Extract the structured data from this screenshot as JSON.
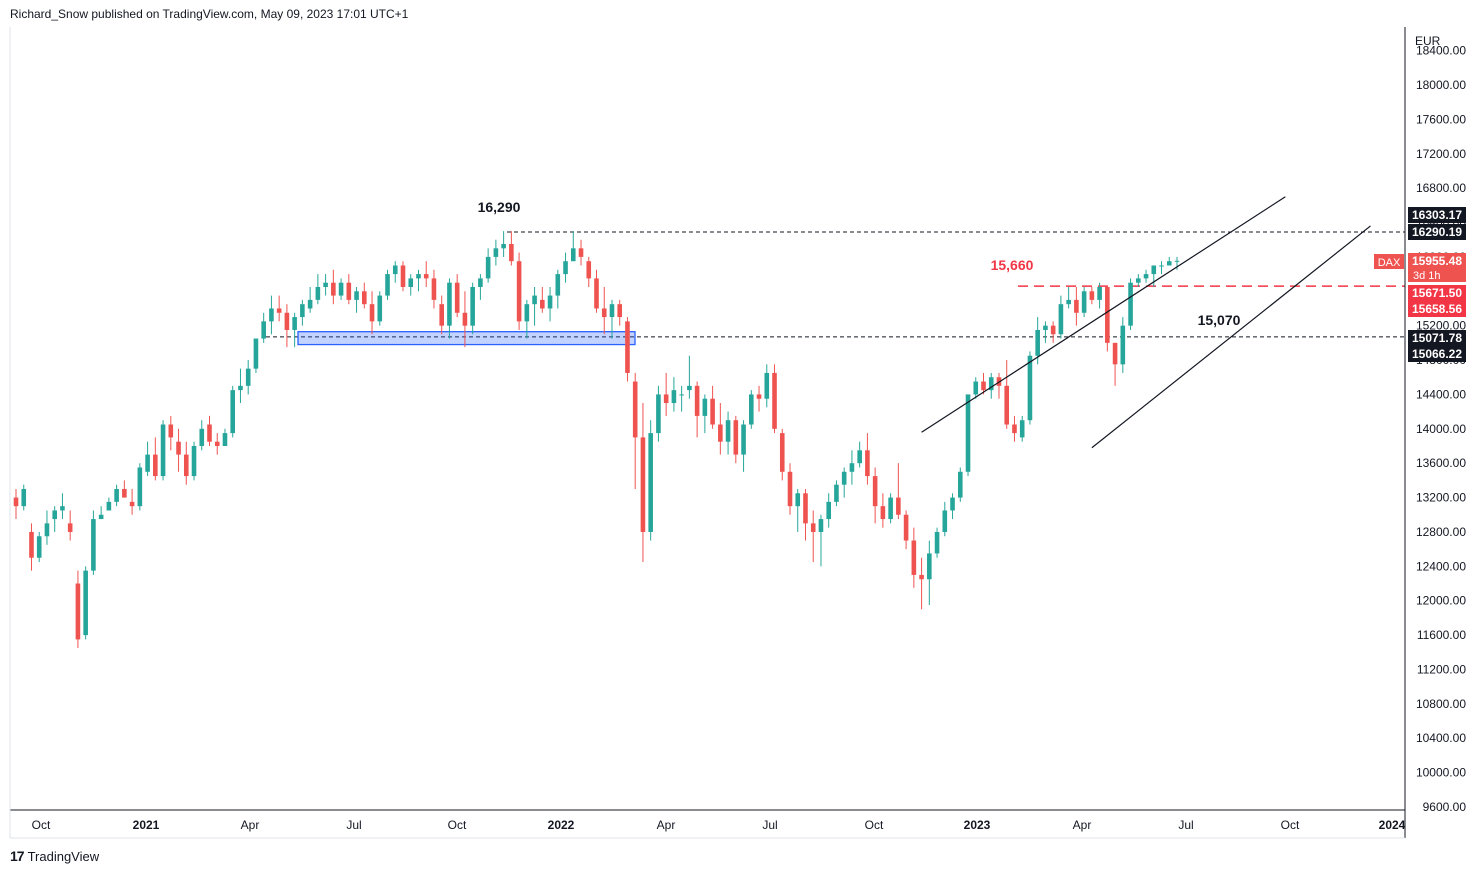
{
  "header": {
    "published_text": "Richard_Snow published on TradingView.com, May 09, 2023 17:01 UTC+1"
  },
  "footer": {
    "brand_logo": "17",
    "brand_name": "TradingView"
  },
  "chart_data": {
    "type": "candlestick",
    "symbol": "DAX",
    "currency": "EUR",
    "interval": "weekly",
    "countdown": "3d 1h",
    "ylim": [
      9500,
      18900
    ],
    "y_ticks": [
      9600,
      10000,
      10400,
      10800,
      11200,
      11600,
      12000,
      12400,
      12800,
      13200,
      13600,
      14000,
      14400,
      14800,
      15200,
      15600,
      16000,
      16400,
      16800,
      17200,
      17600,
      18000,
      18400
    ],
    "x_ticks": [
      "Oct",
      "2021",
      "Apr",
      "Jul",
      "Oct",
      "2022",
      "Apr",
      "Jul",
      "Oct",
      "2023",
      "Apr",
      "Jul",
      "Oct",
      "2024"
    ],
    "x_tick_bold": [
      "2021",
      "2022",
      "2023",
      "2024"
    ],
    "colors": {
      "up": "#26a69a",
      "down": "#ef5350",
      "grid": "none",
      "annotation_red": "#f23645"
    },
    "candles": [
      [
        13200,
        13300,
        12950,
        13100
      ],
      [
        13100,
        13350,
        13050,
        13300
      ],
      [
        12800,
        12900,
        12350,
        12500
      ],
      [
        12500,
        12800,
        12450,
        12750
      ],
      [
        12750,
        13050,
        12650,
        12900
      ],
      [
        12950,
        13100,
        12800,
        13050
      ],
      [
        13050,
        13250,
        12950,
        13100
      ],
      [
        12900,
        13050,
        12700,
        12800
      ],
      [
        12200,
        12350,
        11450,
        11550
      ],
      [
        11600,
        12400,
        11550,
        12350
      ],
      [
        12350,
        13050,
        12300,
        12950
      ],
      [
        12950,
        13100,
        12950,
        13000
      ],
      [
        13050,
        13200,
        13050,
        13150
      ],
      [
        13150,
        13350,
        13100,
        13300
      ],
      [
        13300,
        13400,
        13200,
        13200
      ],
      [
        13150,
        13300,
        13000,
        13100
      ],
      [
        13100,
        13600,
        13050,
        13550
      ],
      [
        13500,
        13850,
        13450,
        13700
      ],
      [
        13700,
        13900,
        13400,
        13450
      ],
      [
        13450,
        14100,
        13400,
        14050
      ],
      [
        14050,
        14150,
        13750,
        13900
      ],
      [
        13850,
        14000,
        13500,
        13700
      ],
      [
        13700,
        13850,
        13350,
        13450
      ],
      [
        13450,
        13850,
        13400,
        13800
      ],
      [
        13800,
        14100,
        13750,
        14000
      ],
      [
        14050,
        14150,
        13800,
        13850
      ],
      [
        13850,
        13950,
        13700,
        13800
      ],
      [
        13800,
        14000,
        13800,
        13950
      ],
      [
        13950,
        14500,
        13900,
        14450
      ],
      [
        14450,
        14700,
        14300,
        14500
      ],
      [
        14500,
        14800,
        14400,
        14700
      ],
      [
        14700,
        15050,
        14650,
        15050
      ],
      [
        15050,
        15350,
        15000,
        15250
      ],
      [
        15250,
        15550,
        15100,
        15400
      ],
      [
        15400,
        15550,
        15250,
        15350
      ],
      [
        15350,
        15450,
        14950,
        15150
      ],
      [
        15150,
        15350,
        14950,
        15300
      ],
      [
        15300,
        15500,
        15200,
        15450
      ],
      [
        15400,
        15650,
        15350,
        15500
      ],
      [
        15500,
        15800,
        15450,
        15650
      ],
      [
        15650,
        15800,
        15550,
        15700
      ],
      [
        15700,
        15850,
        15450,
        15550
      ],
      [
        15550,
        15750,
        15500,
        15700
      ],
      [
        15700,
        15800,
        15450,
        15500
      ],
      [
        15500,
        15650,
        15350,
        15600
      ],
      [
        15600,
        15700,
        15400,
        15450
      ],
      [
        15450,
        15600,
        15100,
        15250
      ],
      [
        15250,
        15600,
        15200,
        15550
      ],
      [
        15550,
        15850,
        15500,
        15800
      ],
      [
        15800,
        15950,
        15700,
        15900
      ],
      [
        15900,
        15950,
        15600,
        15650
      ],
      [
        15650,
        15800,
        15550,
        15750
      ],
      [
        15750,
        15850,
        15600,
        15800
      ],
      [
        15800,
        15950,
        15650,
        15750
      ],
      [
        15750,
        15850,
        15400,
        15500
      ],
      [
        15450,
        15550,
        15100,
        15200
      ],
      [
        15200,
        15750,
        15050,
        15700
      ],
      [
        15700,
        15800,
        15300,
        15350
      ],
      [
        15350,
        15600,
        14950,
        15200
      ],
      [
        15200,
        15700,
        15100,
        15650
      ],
      [
        15650,
        15800,
        15500,
        15750
      ],
      [
        15750,
        16100,
        15700,
        16000
      ],
      [
        16000,
        16200,
        15900,
        16100
      ],
      [
        16100,
        16300,
        16000,
        16150
      ],
      [
        16150,
        16300,
        15900,
        15950
      ],
      [
        15950,
        16050,
        15150,
        15250
      ],
      [
        15250,
        15500,
        15050,
        15450
      ],
      [
        15450,
        15650,
        15200,
        15550
      ],
      [
        15500,
        15650,
        15350,
        15400
      ],
      [
        15400,
        15650,
        15250,
        15550
      ],
      [
        15550,
        15850,
        15400,
        15800
      ],
      [
        15800,
        16050,
        15700,
        15950
      ],
      [
        15950,
        16300,
        15950,
        16100
      ],
      [
        16100,
        16200,
        15900,
        16000
      ],
      [
        15950,
        16000,
        15650,
        15750
      ],
      [
        15750,
        15850,
        15350,
        15400
      ],
      [
        15400,
        15650,
        15100,
        15300
      ],
      [
        15300,
        15500,
        15050,
        15450
      ],
      [
        15450,
        15500,
        15200,
        15300
      ],
      [
        15250,
        15300,
        14550,
        14650
      ],
      [
        14550,
        14650,
        13300,
        13900
      ],
      [
        13900,
        14300,
        12450,
        12800
      ],
      [
        12800,
        14100,
        12700,
        13950
      ],
      [
        13950,
        14500,
        13850,
        14400
      ],
      [
        14400,
        14650,
        14150,
        14300
      ],
      [
        14300,
        14600,
        14200,
        14450
      ],
      [
        14400,
        14500,
        14200,
        14400
      ],
      [
        14450,
        14850,
        14350,
        14500
      ],
      [
        14500,
        14550,
        13900,
        14150
      ],
      [
        14150,
        14400,
        13950,
        14350
      ],
      [
        14350,
        14500,
        14000,
        14050
      ],
      [
        14050,
        14300,
        13700,
        13850
      ],
      [
        13850,
        14200,
        13700,
        14100
      ],
      [
        14100,
        14150,
        13600,
        13700
      ],
      [
        13700,
        14100,
        13500,
        14050
      ],
      [
        14050,
        14450,
        14000,
        14400
      ],
      [
        14400,
        14500,
        14200,
        14350
      ],
      [
        14350,
        14750,
        14250,
        14650
      ],
      [
        14650,
        14750,
        13950,
        14000
      ],
      [
        13950,
        14000,
        13400,
        13500
      ],
      [
        13500,
        13600,
        13000,
        13100
      ],
      [
        13100,
        13300,
        12800,
        13250
      ],
      [
        13250,
        13300,
        12700,
        12900
      ],
      [
        12900,
        13050,
        12450,
        12800
      ],
      [
        12800,
        13000,
        12400,
        12950
      ],
      [
        12950,
        13250,
        12850,
        13150
      ],
      [
        13150,
        13400,
        13100,
        13350
      ],
      [
        13350,
        13550,
        13200,
        13500
      ],
      [
        13500,
        13750,
        13350,
        13600
      ],
      [
        13600,
        13850,
        13550,
        13750
      ],
      [
        13750,
        13950,
        13350,
        13450
      ],
      [
        13450,
        13550,
        12900,
        13100
      ],
      [
        13100,
        13250,
        12850,
        12950
      ],
      [
        12950,
        13250,
        12900,
        13200
      ],
      [
        13200,
        13600,
        12950,
        13000
      ],
      [
        13000,
        13050,
        12600,
        12700
      ],
      [
        12700,
        12850,
        12150,
        12300
      ],
      [
        12300,
        12500,
        11900,
        12250
      ],
      [
        12250,
        12700,
        11950,
        12550
      ],
      [
        12550,
        12850,
        12500,
        12800
      ],
      [
        12800,
        13150,
        12750,
        13050
      ],
      [
        13050,
        13250,
        12950,
        13200
      ],
      [
        13200,
        13550,
        13150,
        13500
      ],
      [
        13500,
        14400,
        13450,
        14400
      ],
      [
        14400,
        14600,
        14350,
        14550
      ],
      [
        14550,
        14650,
        14400,
        14450
      ],
      [
        14450,
        14650,
        14350,
        14600
      ],
      [
        14600,
        14650,
        14350,
        14500
      ],
      [
        14500,
        14800,
        14000,
        14050
      ],
      [
        14050,
        14150,
        13850,
        13950
      ],
      [
        13900,
        14150,
        13850,
        14100
      ],
      [
        14100,
        14900,
        14050,
        14850
      ],
      [
        14850,
        15300,
        14750,
        15150
      ],
      [
        15150,
        15250,
        15000,
        15200
      ],
      [
        15200,
        15250,
        15000,
        15100
      ],
      [
        15100,
        15550,
        15050,
        15450
      ],
      [
        15450,
        15650,
        15400,
        15500
      ],
      [
        15500,
        15650,
        15200,
        15350
      ],
      [
        15350,
        15650,
        15300,
        15600
      ],
      [
        15600,
        15650,
        15450,
        15500
      ],
      [
        15500,
        15700,
        15400,
        15650
      ],
      [
        15650,
        15650,
        14900,
        15000
      ],
      [
        15000,
        15000,
        14500,
        14750
      ],
      [
        14750,
        15300,
        14650,
        15200
      ],
      [
        15200,
        15750,
        15150,
        15700
      ],
      [
        15700,
        15800,
        15650,
        15750
      ],
      [
        15750,
        15850,
        15700,
        15800
      ],
      [
        15800,
        15900,
        15650,
        15900
      ],
      [
        15900,
        15950,
        15800,
        15900
      ],
      [
        15900,
        16000,
        15900,
        15950
      ],
      [
        15950,
        16000,
        15850,
        15955
      ]
    ],
    "horizontal_levels": [
      {
        "price": 16290,
        "style": "dashed",
        "color": "#131722"
      },
      {
        "price": 15660,
        "style": "dashed",
        "color": "#f23645"
      },
      {
        "price": 15070,
        "style": "dashed",
        "color": "#131722"
      }
    ],
    "support_zone": {
      "price_low": 14980,
      "price_high": 15130
    },
    "channel": {
      "upper": [
        [
          117,
          13960
        ],
        [
          164,
          16700
        ]
      ],
      "lower": [
        [
          139,
          13780
        ],
        [
          175,
          16360
        ]
      ]
    },
    "annotations": [
      {
        "text": "16,290",
        "color": "#131722"
      },
      {
        "text": "15,660",
        "color": "#f23645"
      },
      {
        "text": "15,070",
        "color": "#131722"
      }
    ],
    "price_tags": [
      {
        "text": "16303.17",
        "price": 16303.17,
        "bg": "#131722",
        "fg": "#ffffff"
      },
      {
        "text": "16290.19",
        "price": 16290.19,
        "bg": "#131722",
        "fg": "#ffffff"
      },
      {
        "text": "15955.48",
        "price": 15955.48,
        "bg": "#ef5350",
        "fg": "#ffffff"
      },
      {
        "text": "15671.50",
        "price": 15671.5,
        "bg": "#f23645",
        "fg": "#ffffff"
      },
      {
        "text": "15658.56",
        "price": 15658.56,
        "bg": "#f23645",
        "fg": "#ffffff"
      },
      {
        "text": "15071.78",
        "price": 15071.78,
        "bg": "#131722",
        "fg": "#ffffff"
      },
      {
        "text": "15066.22",
        "price": 15066.22,
        "bg": "#131722",
        "fg": "#ffffff"
      }
    ]
  }
}
